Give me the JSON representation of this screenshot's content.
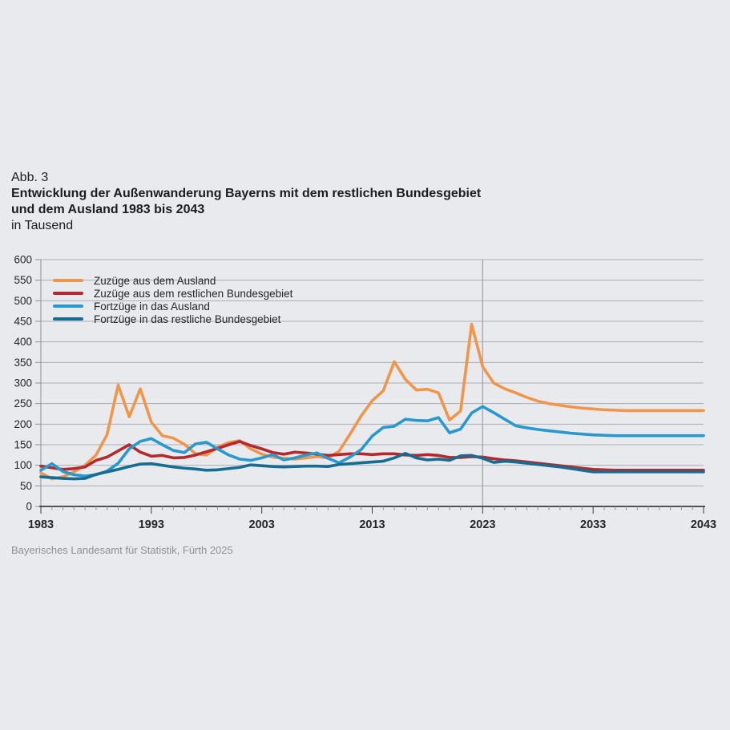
{
  "figure": {
    "label": "Abb. 3",
    "title_line1": "Entwicklung der Außenwanderung Bayerns mit dem restlichen Bundesgebiet",
    "title_line2": "und dem Ausland 1983 bis 2043",
    "subtitle": "in Tausend",
    "source": "Bayerisches Landesamt für Statistik, Fürth 2025"
  },
  "colors": {
    "background": "#E8EAED",
    "grid": "#ABAFB2",
    "divider": "#9DA1A5",
    "axis_light": "#8D9195",
    "axis_dark": "#3C3F42",
    "text": "#232527",
    "source_text": "#8E9296"
  },
  "chart_data": {
    "type": "line",
    "title": "Entwicklung der Außenwanderung Bayerns mit dem restlichen Bundesgebiet und dem Ausland 1983 bis 2043",
    "unit": "in Tausend",
    "xlabel": "",
    "ylabel": "",
    "x_range": [
      1983,
      2043
    ],
    "x_step": 1,
    "xticks": [
      1983,
      1993,
      2003,
      2013,
      2023,
      2033,
      2043
    ],
    "ylim": [
      0,
      600
    ],
    "ystep": 50,
    "grid": true,
    "legend_position": "top-left-inside",
    "forecast_divider_x": 2023,
    "series": [
      {
        "name": "Zuzüge aus dem Ausland",
        "color": "#F0964A",
        "values": [
          82,
          67,
          72,
          84,
          100,
          125,
          175,
          295,
          218,
          286,
          205,
          172,
          166,
          151,
          128,
          125,
          144,
          155,
          160,
          140,
          127,
          120,
          117,
          115,
          118,
          121,
          118,
          134,
          176,
          220,
          257,
          281,
          352,
          309,
          283,
          285,
          276,
          210,
          232,
          443,
          340,
          300,
          286,
          276,
          265,
          256,
          250,
          246,
          242,
          239,
          237,
          235,
          234,
          233,
          233,
          233,
          233,
          233,
          233,
          233,
          233
        ]
      },
      {
        "name": "Zuzüge aus dem restlichen Bundesgebiet",
        "color": "#B5282C",
        "values": [
          98,
          94,
          90,
          92,
          96,
          112,
          120,
          135,
          150,
          132,
          122,
          124,
          118,
          119,
          125,
          133,
          141,
          150,
          158,
          148,
          140,
          131,
          127,
          132,
          130,
          127,
          124,
          126,
          128,
          128,
          126,
          128,
          128,
          125,
          124,
          126,
          124,
          119,
          119,
          121,
          120,
          116,
          113,
          111,
          108,
          105,
          102,
          99,
          96,
          93,
          90,
          89,
          88,
          88,
          88,
          88,
          88,
          88,
          88,
          88,
          88
        ]
      },
      {
        "name": "Fortzüge in das Ausland",
        "color": "#2799CE",
        "values": [
          88,
          104,
          85,
          77,
          74,
          77,
          86,
          105,
          140,
          158,
          165,
          150,
          136,
          131,
          152,
          156,
          140,
          125,
          115,
          112,
          118,
          126,
          113,
          118,
          125,
          130,
          117,
          106,
          120,
          138,
          171,
          192,
          195,
          212,
          209,
          208,
          216,
          179,
          188,
          227,
          243,
          228,
          212,
          196,
          191,
          187,
          184,
          181,
          178,
          176,
          174,
          173,
          172,
          172,
          172,
          172,
          172,
          172,
          172,
          172,
          172
        ]
      },
      {
        "name": "Fortzüge in das restliche Bundesgebiet",
        "color": "#176C92",
        "values": [
          72,
          70,
          68,
          67,
          68,
          78,
          84,
          90,
          97,
          103,
          104,
          100,
          96,
          93,
          91,
          88,
          89,
          92,
          95,
          101,
          99,
          97,
          96,
          97,
          98,
          98,
          97,
          102,
          104,
          106,
          108,
          110,
          118,
          129,
          118,
          113,
          115,
          112,
          123,
          124,
          117,
          107,
          110,
          108,
          105,
          102,
          99,
          96,
          92,
          88,
          84,
          84,
          84,
          84,
          84,
          84,
          84,
          84,
          84,
          84,
          84
        ]
      }
    ]
  }
}
